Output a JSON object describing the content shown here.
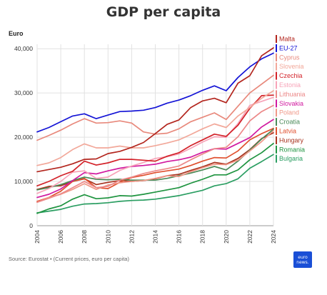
{
  "title": "GDP per capita",
  "y_unit": "Euro",
  "source": "Source: Eurostat • (Current prices, euro per capita)",
  "logo": {
    "line1": "euro",
    "line2": "news."
  },
  "chart_data": {
    "type": "line",
    "title": "GDP per capita",
    "ylabel": "Euro",
    "ylim": [
      0,
      41000
    ],
    "xlim": [
      2004,
      2024
    ],
    "grid": true,
    "legend_position": "right",
    "x_ticks": [
      2004,
      2006,
      2008,
      2010,
      2012,
      2014,
      2016,
      2018,
      2020,
      2022,
      2024
    ],
    "y_ticks": [
      0,
      10000,
      20000,
      30000,
      40000
    ],
    "y_tick_labels": [
      "0",
      "10,000",
      "20,000",
      "30,000",
      "40,000"
    ],
    "x": [
      2004,
      2005,
      2006,
      2007,
      2008,
      2009,
      2010,
      2011,
      2012,
      2013,
      2014,
      2015,
      2016,
      2017,
      2018,
      2019,
      2020,
      2021,
      2022,
      2023,
      2024
    ],
    "series": [
      {
        "name": "Malta",
        "color": "#b3261e",
        "values": [
          12200,
          12700,
          13200,
          14000,
          15000,
          15100,
          16300,
          16800,
          17700,
          18800,
          20800,
          22900,
          23900,
          26700,
          28200,
          28800,
          27800,
          32200,
          33900,
          38400,
          40200
        ]
      },
      {
        "name": "EU-27",
        "color": "#1414d6",
        "values": [
          21200,
          22200,
          23500,
          24800,
          25300,
          24200,
          25000,
          25800,
          25900,
          26100,
          26700,
          27700,
          28400,
          29400,
          30600,
          31600,
          30500,
          33500,
          35900,
          37700,
          39000
        ]
      },
      {
        "name": "Cyprus",
        "color": "#e8897c",
        "values": [
          19300,
          20400,
          21600,
          23000,
          24200,
          23200,
          23300,
          23700,
          23200,
          21200,
          20700,
          20900,
          21900,
          23500,
          24500,
          25500,
          24000,
          27000,
          30000,
          32000,
          34000
        ]
      },
      {
        "name": "Slovenia",
        "color": "#f2a89a",
        "values": [
          13600,
          14200,
          15400,
          17200,
          18500,
          17600,
          17600,
          18000,
          17600,
          17600,
          18100,
          18700,
          19400,
          20600,
          21900,
          23000,
          22200,
          24800,
          26700,
          28800,
          30500
        ]
      },
      {
        "name": "Czechia",
        "color": "#d3232a",
        "values": [
          9000,
          10000,
          11300,
          12300,
          14600,
          13700,
          14200,
          15000,
          15000,
          14800,
          14600,
          15700,
          16500,
          18100,
          19400,
          20700,
          20200,
          22700,
          26500,
          29400,
          29500
        ]
      },
      {
        "name": "Estonia",
        "color": "#f7a3b8",
        "values": [
          7300,
          8400,
          10000,
          12100,
          12400,
          10700,
          11000,
          12500,
          13500,
          14300,
          15200,
          15600,
          16200,
          17500,
          18900,
          20100,
          20000,
          23100,
          27200,
          28100,
          29000
        ]
      },
      {
        "name": "Lithuania",
        "color": "#ec8888",
        "values": [
          5300,
          6200,
          7200,
          8600,
          10000,
          8600,
          8900,
          10300,
          11000,
          11800,
          12400,
          12900,
          13500,
          14900,
          16200,
          17400,
          17700,
          20100,
          23700,
          25800,
          27200
        ]
      },
      {
        "name": "Slovakia",
        "color": "#d11aa0",
        "values": [
          6400,
          7100,
          8300,
          10200,
          12000,
          11700,
          12400,
          13000,
          13400,
          13600,
          13900,
          14500,
          14900,
          15500,
          16600,
          17400,
          17300,
          18600,
          19900,
          22300,
          24000
        ]
      },
      {
        "name": "Poland",
        "color": "#f09888",
        "values": [
          5300,
          6400,
          7100,
          8200,
          9500,
          8200,
          9200,
          9700,
          10000,
          10200,
          10700,
          11300,
          11100,
          12200,
          13100,
          13900,
          13800,
          14800,
          16900,
          19000,
          21500
        ]
      },
      {
        "name": "Croatia",
        "color": "#4a8a58",
        "values": [
          8100,
          8600,
          9300,
          10200,
          11000,
          10500,
          10400,
          10500,
          10300,
          10300,
          10300,
          10700,
          11300,
          11900,
          12600,
          13400,
          12600,
          14600,
          17100,
          19600,
          21800
        ]
      },
      {
        "name": "Latvia",
        "color": "#e0502e",
        "values": [
          5500,
          6400,
          7800,
          10000,
          10700,
          8600,
          8400,
          9800,
          10900,
          11400,
          12000,
          12400,
          12800,
          13600,
          14600,
          15400,
          15300,
          16900,
          19400,
          20800,
          22000
        ]
      },
      {
        "name": "Hungary",
        "color": "#a8321e",
        "values": [
          8200,
          8900,
          9000,
          10000,
          10600,
          9300,
          9800,
          10200,
          10000,
          10200,
          10600,
          11300,
          11600,
          12500,
          13300,
          14300,
          13900,
          15200,
          17200,
          19700,
          21000
        ]
      },
      {
        "name": "Romania",
        "color": "#1f9440",
        "values": [
          2800,
          3800,
          4500,
          6000,
          7000,
          6100,
          6300,
          6800,
          6700,
          7100,
          7600,
          8100,
          8600,
          9600,
          10500,
          11500,
          11500,
          12600,
          14900,
          16500,
          18600
        ]
      },
      {
        "name": "Bulgaria",
        "color": "#2b9e62",
        "values": [
          2900,
          3300,
          3700,
          4400,
          4900,
          5000,
          5200,
          5500,
          5700,
          5800,
          6000,
          6400,
          6800,
          7400,
          8000,
          9000,
          9500,
          10600,
          13000,
          14500,
          16100
        ]
      }
    ]
  }
}
